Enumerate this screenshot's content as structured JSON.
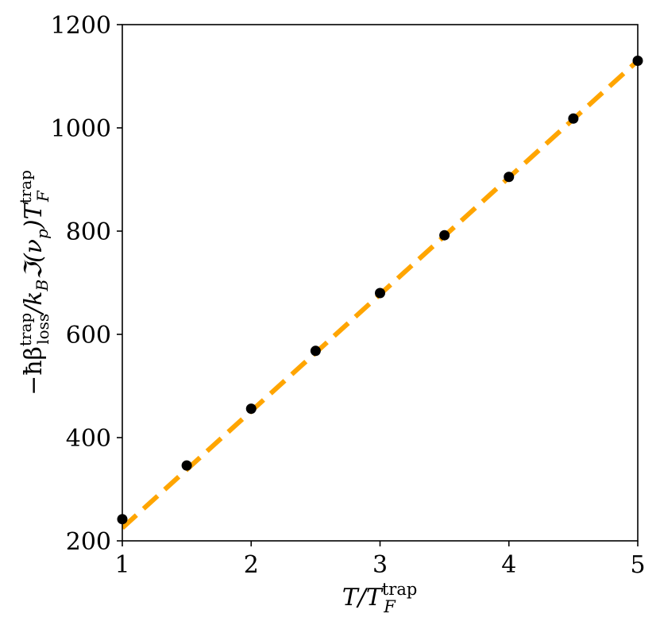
{
  "chart_data": {
    "type": "scatter",
    "title": "",
    "xlabel": "T/T_F^trap",
    "ylabel": "−ħβ_loss^trap/k_B ℑ(ν_p) T_F^trap",
    "xlim": [
      1,
      5
    ],
    "ylim": [
      200,
      1200
    ],
    "xticks": [
      1,
      2,
      3,
      4,
      5
    ],
    "yticks": [
      200,
      400,
      600,
      800,
      1000,
      1200
    ],
    "grid": false,
    "series": [
      {
        "kind": "scatter",
        "color": "#000000",
        "x": [
          1.0,
          1.5,
          2.0,
          2.5,
          3.0,
          3.5,
          4.0,
          4.5,
          5.0
        ],
        "y": [
          242,
          346,
          456,
          568,
          680,
          792,
          905,
          1018,
          1130
        ]
      },
      {
        "kind": "line",
        "style": "dashed",
        "color": "#FFA500",
        "x": [
          1.0,
          5.0
        ],
        "y": [
          225,
          1130
        ]
      }
    ]
  }
}
